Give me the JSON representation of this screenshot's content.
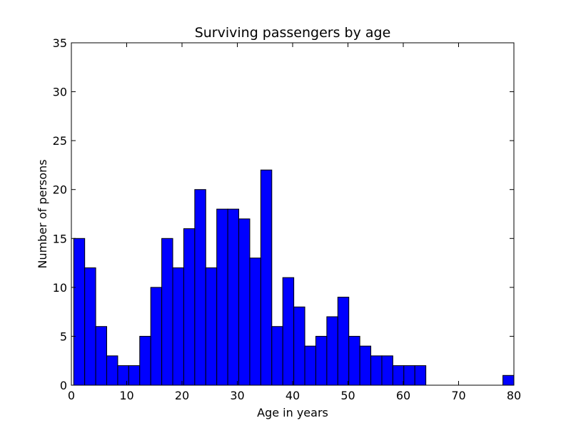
{
  "chart_data": {
    "type": "bar",
    "title": "Surviving passengers by age",
    "xlabel": "Age in years",
    "ylabel": "Number of persons",
    "xlim": [
      0,
      80
    ],
    "ylim": [
      0,
      35
    ],
    "xticks": [
      0,
      10,
      20,
      30,
      40,
      50,
      60,
      70,
      80
    ],
    "yticks": [
      0,
      5,
      10,
      15,
      20,
      25,
      30,
      35
    ],
    "bin_range": [
      0.42,
      80
    ],
    "bin_count": 40,
    "bar_color": "#0000ff",
    "edge_color": "#000000",
    "values": [
      15,
      12,
      6,
      3,
      2,
      2,
      5,
      10,
      15,
      12,
      16,
      20,
      12,
      18,
      18,
      17,
      13,
      22,
      6,
      11,
      8,
      4,
      5,
      7,
      9,
      5,
      4,
      3,
      3,
      2,
      2,
      2,
      0,
      0,
      0,
      0,
      0,
      0,
      0,
      1
    ]
  }
}
